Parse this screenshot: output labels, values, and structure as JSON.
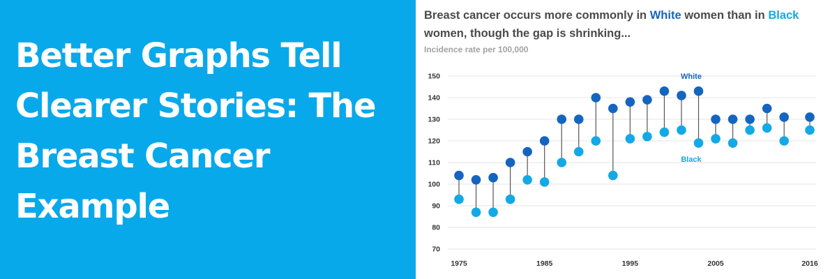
{
  "banner": {
    "title": "Better Graphs Tell Clearer Stories: The Breast Cancer Example",
    "background_color": "#08a9ea"
  },
  "chart_data": {
    "type": "dumbbell",
    "title": {
      "parts": [
        {
          "text": "Breast cancer occurs more commonly in "
        },
        {
          "text": "White",
          "series": "White"
        },
        {
          "text": " women than in "
        },
        {
          "text": "Black",
          "series": "Black"
        },
        {
          "text": " women, though the gap is shrinking..."
        }
      ]
    },
    "subtitle": "Incidence rate per 100,000",
    "xlabel": "",
    "ylabel": "",
    "ylim": [
      70,
      150
    ],
    "yticks": [
      70,
      80,
      90,
      100,
      110,
      120,
      130,
      140,
      150
    ],
    "xlim": [
      1975,
      2016
    ],
    "xticks": [
      1975,
      1985,
      1995,
      2005,
      2016
    ],
    "grid": true,
    "x": [
      1975,
      1977,
      1979,
      1981,
      1983,
      1985,
      1987,
      1989,
      1991,
      1993,
      1995,
      1997,
      1999,
      2001,
      2003,
      2005,
      2007,
      2009,
      2011,
      2013,
      2016
    ],
    "series": [
      {
        "name": "White",
        "color": "#1565c0",
        "values": [
          104,
          102,
          103,
          110,
          115,
          120,
          130,
          130,
          140,
          135,
          138,
          139,
          143,
          141,
          143,
          130,
          130,
          130,
          135,
          131,
          131
        ],
        "label_at_year": 1999
      },
      {
        "name": "Black",
        "color": "#13a9e6",
        "values": [
          93,
          87,
          87,
          93,
          102,
          101,
          110,
          115,
          120,
          104,
          121,
          122,
          124,
          125,
          119,
          121,
          119,
          125,
          126,
          120,
          125
        ],
        "label_at_year": 1999
      }
    ],
    "connector_color": "#555555"
  }
}
